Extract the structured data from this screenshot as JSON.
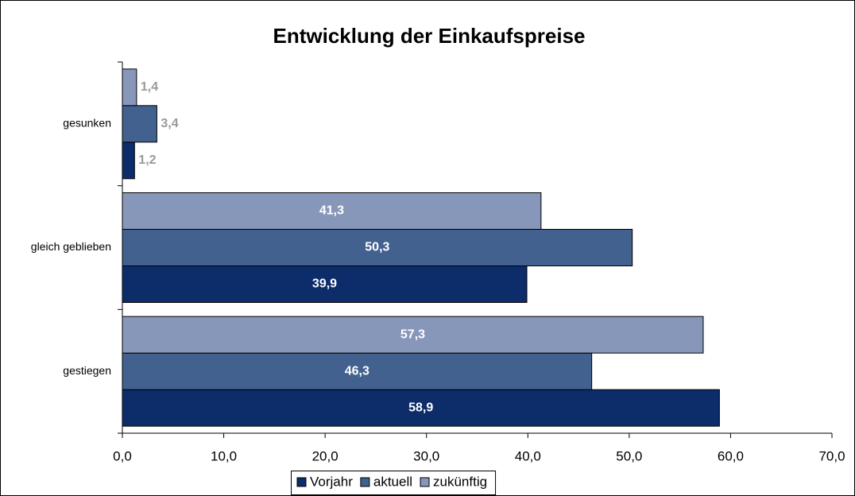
{
  "chart_data": {
    "type": "bar",
    "orientation": "horizontal",
    "title": "Entwicklung der Einkaufspreise",
    "categories": [
      "gesunken",
      "gleich geblieben",
      "gestiegen"
    ],
    "series": [
      {
        "name": "Vorjahr",
        "color": "#0c2c6a",
        "values": [
          1.2,
          39.9,
          58.9
        ],
        "value_labels": [
          "1,2",
          "39,9",
          "58,9"
        ]
      },
      {
        "name": "aktuell",
        "color": "#42618f",
        "values": [
          3.4,
          50.3,
          46.3
        ],
        "value_labels": [
          "3,4",
          "50,3",
          "46,3"
        ]
      },
      {
        "name": "zukünftig",
        "color": "#8797b9",
        "values": [
          1.4,
          41.3,
          57.3
        ],
        "value_labels": [
          "1,4",
          "41,3",
          "57,3"
        ]
      }
    ],
    "xlim": [
      0,
      70
    ],
    "xticks": [
      {
        "value": 0,
        "label": "0,0"
      },
      {
        "value": 10,
        "label": "10,0"
      },
      {
        "value": 20,
        "label": "20,0"
      },
      {
        "value": 30,
        "label": "30,0"
      },
      {
        "value": 40,
        "label": "40,0"
      },
      {
        "value": 50,
        "label": "50,0"
      },
      {
        "value": 60,
        "label": "60,0"
      },
      {
        "value": 70,
        "label": "70,0"
      }
    ],
    "grid": false,
    "legend": "bottom"
  }
}
